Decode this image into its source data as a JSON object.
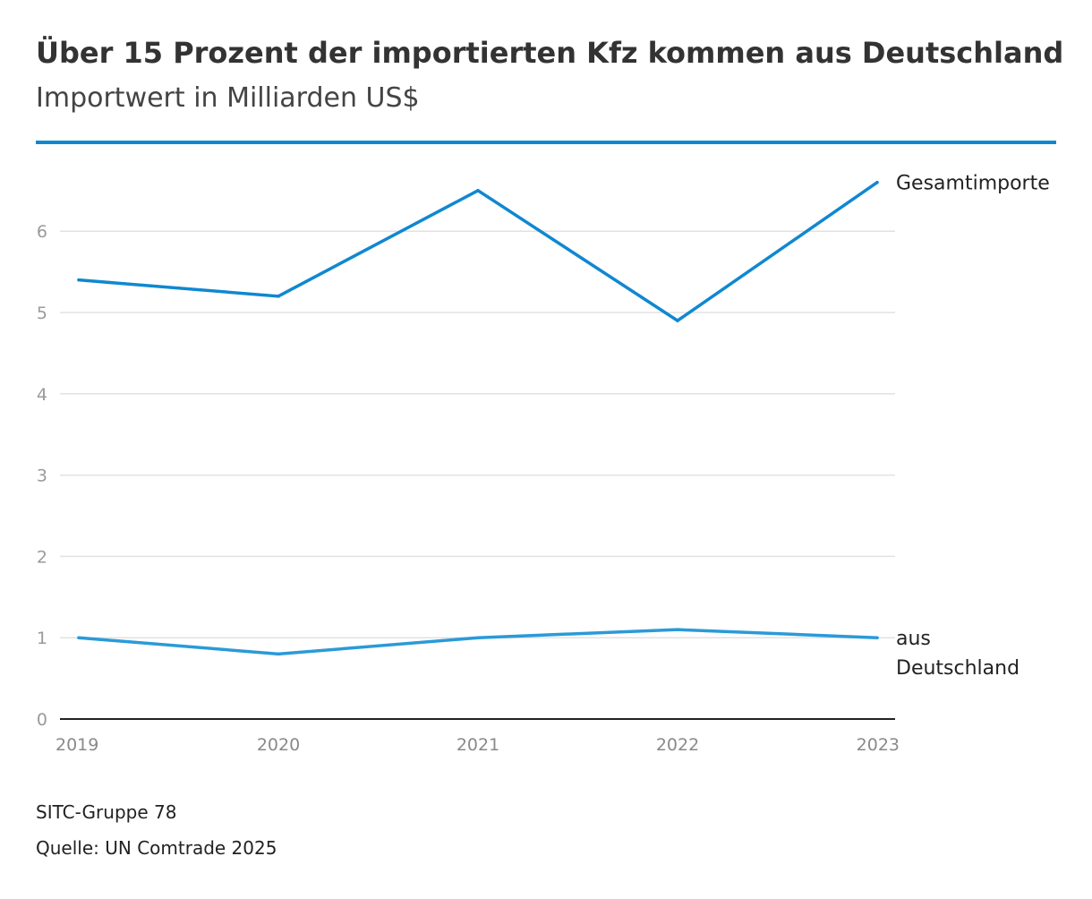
{
  "chart_data": {
    "type": "line",
    "title": "Über 15 Prozent der importierten Kfz kommen aus Deutschland",
    "subtitle": "Importwert in Milliarden US$",
    "x": [
      "2019",
      "2020",
      "2021",
      "2022",
      "2023"
    ],
    "ylim": [
      0,
      6.6
    ],
    "yticks": [
      "0",
      "1",
      "2",
      "3",
      "4",
      "5",
      "6"
    ],
    "xlabel": "",
    "ylabel": "",
    "grid": true,
    "series": [
      {
        "name": "Gesamtimporte",
        "label_lines": [
          "Gesamtimporte"
        ],
        "values": [
          5.4,
          5.2,
          6.5,
          4.9,
          6.6
        ],
        "color": "#0f88d0"
      },
      {
        "name": "aus Deutschland",
        "label_lines": [
          "aus",
          "Deutschland"
        ],
        "values": [
          1.0,
          0.8,
          1.0,
          1.1,
          1.0
        ],
        "color": "#2a9ad8"
      }
    ]
  },
  "footer": {
    "note": "SITC-Gruppe 78",
    "source": "Quelle: UN Comtrade 2025"
  },
  "colors": {
    "accent": "#0f88d0",
    "grid": "#e2e2e2",
    "axis": "#222222"
  }
}
